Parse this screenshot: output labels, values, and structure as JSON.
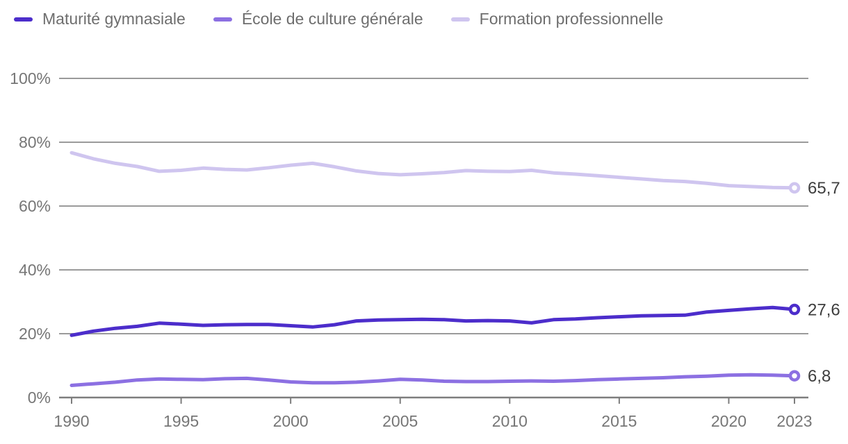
{
  "chart_data": {
    "type": "line",
    "x": [
      1990,
      1991,
      1992,
      1993,
      1994,
      1995,
      1996,
      1997,
      1998,
      1999,
      2000,
      2001,
      2002,
      2003,
      2004,
      2005,
      2006,
      2007,
      2008,
      2009,
      2010,
      2011,
      2012,
      2013,
      2014,
      2015,
      2016,
      2017,
      2018,
      2019,
      2020,
      2021,
      2022,
      2023
    ],
    "series": [
      {
        "name": "Maturité gymnasiale",
        "slug": "maturite-gymnasiale",
        "color": "#4c2dcb",
        "end_label": "27,6",
        "values": [
          19.5,
          20.8,
          21.7,
          22.3,
          23.3,
          23.0,
          22.6,
          22.8,
          22.9,
          22.9,
          22.5,
          22.1,
          22.8,
          24.0,
          24.3,
          24.4,
          24.5,
          24.4,
          24.0,
          24.1,
          24.0,
          23.4,
          24.4,
          24.6,
          25.0,
          25.3,
          25.6,
          25.7,
          25.8,
          26.8,
          27.3,
          27.8,
          28.2,
          27.6
        ]
      },
      {
        "name": "École de culture générale",
        "slug": "ecole-de-culture-generale",
        "color": "#8c70e2",
        "end_label": "6,8",
        "values": [
          3.8,
          4.3,
          4.8,
          5.5,
          5.8,
          5.7,
          5.6,
          5.9,
          6.0,
          5.5,
          4.9,
          4.6,
          4.6,
          4.8,
          5.2,
          5.7,
          5.5,
          5.1,
          5.0,
          5.0,
          5.1,
          5.2,
          5.1,
          5.3,
          5.6,
          5.8,
          6.0,
          6.2,
          6.5,
          6.7,
          7.0,
          7.1,
          7.0,
          6.8
        ]
      },
      {
        "name": "Formation professionnelle",
        "slug": "formation-professionnelle",
        "color": "#cfc5ef",
        "end_label": "65,7",
        "values": [
          76.7,
          74.8,
          73.4,
          72.4,
          70.9,
          71.2,
          71.9,
          71.5,
          71.3,
          72.0,
          72.8,
          73.4,
          72.3,
          71.0,
          70.2,
          69.8,
          70.1,
          70.5,
          71.1,
          70.9,
          70.8,
          71.2,
          70.4,
          70.0,
          69.5,
          69.0,
          68.5,
          68.0,
          67.7,
          67.1,
          66.4,
          66.1,
          65.8,
          65.7
        ]
      }
    ],
    "yticks": [
      {
        "label": "0%",
        "value": 0
      },
      {
        "label": "20%",
        "value": 20
      },
      {
        "label": "40%",
        "value": 40
      },
      {
        "label": "60%",
        "value": 60
      },
      {
        "label": "80%",
        "value": 80
      },
      {
        "label": "100%",
        "value": 100
      }
    ],
    "xticks": [
      {
        "label": "1990",
        "value": 1990
      },
      {
        "label": "1995",
        "value": 1995
      },
      {
        "label": "2000",
        "value": 2000
      },
      {
        "label": "2005",
        "value": 2005
      },
      {
        "label": "2010",
        "value": 2010
      },
      {
        "label": "2015",
        "value": 2015
      },
      {
        "label": "2020",
        "value": 2020
      },
      {
        "label": "2023",
        "value": 2023
      }
    ],
    "xlim": [
      1990,
      2023
    ],
    "ylim": [
      0,
      100
    ],
    "grid": true,
    "legend_position": "top"
  },
  "colors": {
    "grid": "#9a9a9a",
    "axis": "#7d7d7d",
    "tick_label": "#767676",
    "legend_text": "#6e6e6e",
    "end_label_text": "#3e3e3e",
    "marker_fill": "#ffffff"
  }
}
